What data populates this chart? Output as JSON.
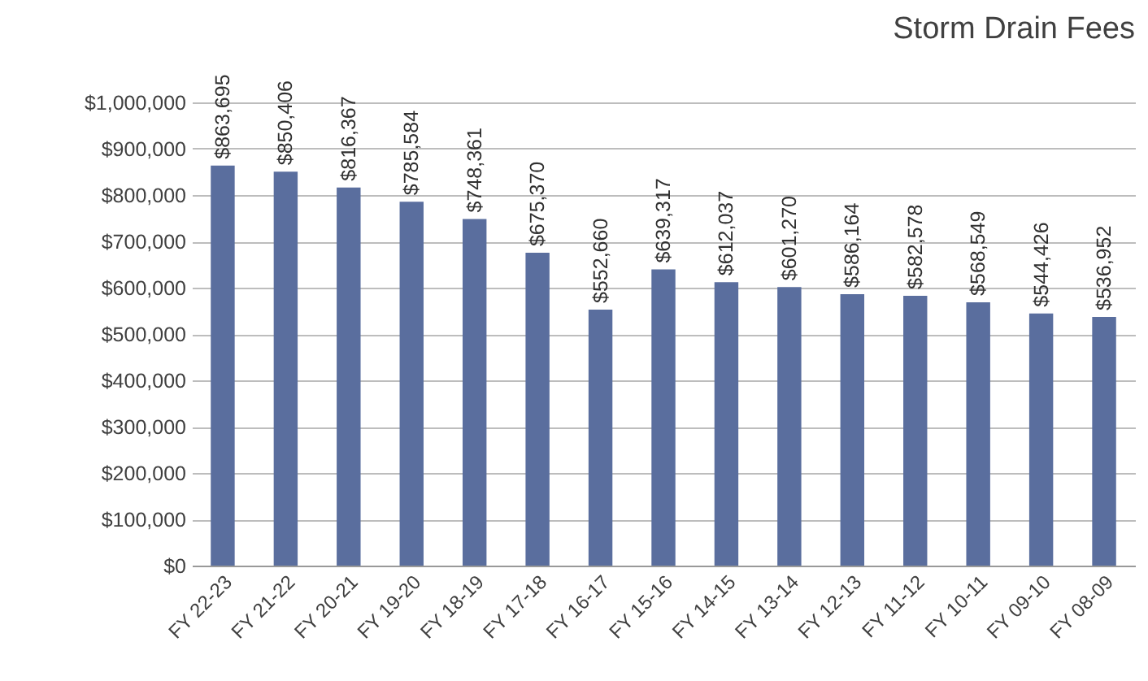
{
  "chart_data": {
    "type": "bar",
    "title": "Storm Drain Fees",
    "categories": [
      "FY 22-23",
      "FY 21-22",
      "FY 20-21",
      "FY 19-20",
      "FY 18-19",
      "FY 17-18",
      "FY 16-17",
      "FY 15-16",
      "FY 14-15",
      "FY 13-14",
      "FY 12-13",
      "FY 11-12",
      "FY 10-11",
      "FY 09-10",
      "FY 08-09"
    ],
    "values": [
      863695,
      850406,
      816367,
      785584,
      748361,
      675370,
      552660,
      639317,
      612037,
      601270,
      586164,
      582578,
      568549,
      544426,
      536952
    ],
    "value_labels": [
      "$863,695",
      "$850,406",
      "$816,367",
      "$785,584",
      "$748,361",
      "$675,370",
      "$552,660",
      "$639,317",
      "$612,037",
      "$601,270",
      "$586,164",
      "$582,578",
      "$568,549",
      "$544,426",
      "$536,952"
    ],
    "color": "#5a6e9e",
    "ylim": [
      0,
      1000000
    ],
    "yticks": [
      {
        "value": 0,
        "label": "$0"
      },
      {
        "value": 100000,
        "label": "$100,000"
      },
      {
        "value": 200000,
        "label": "$200,000"
      },
      {
        "value": 300000,
        "label": "$300,000"
      },
      {
        "value": 400000,
        "label": "$400,000"
      },
      {
        "value": 500000,
        "label": "$500,000"
      },
      {
        "value": 600000,
        "label": "$600,000"
      },
      {
        "value": 700000,
        "label": "$700,000"
      },
      {
        "value": 800000,
        "label": "$800,000"
      },
      {
        "value": 900000,
        "label": "$900,000"
      },
      {
        "value": 1000000,
        "label": "$1,000,000"
      }
    ],
    "grid": "y"
  }
}
